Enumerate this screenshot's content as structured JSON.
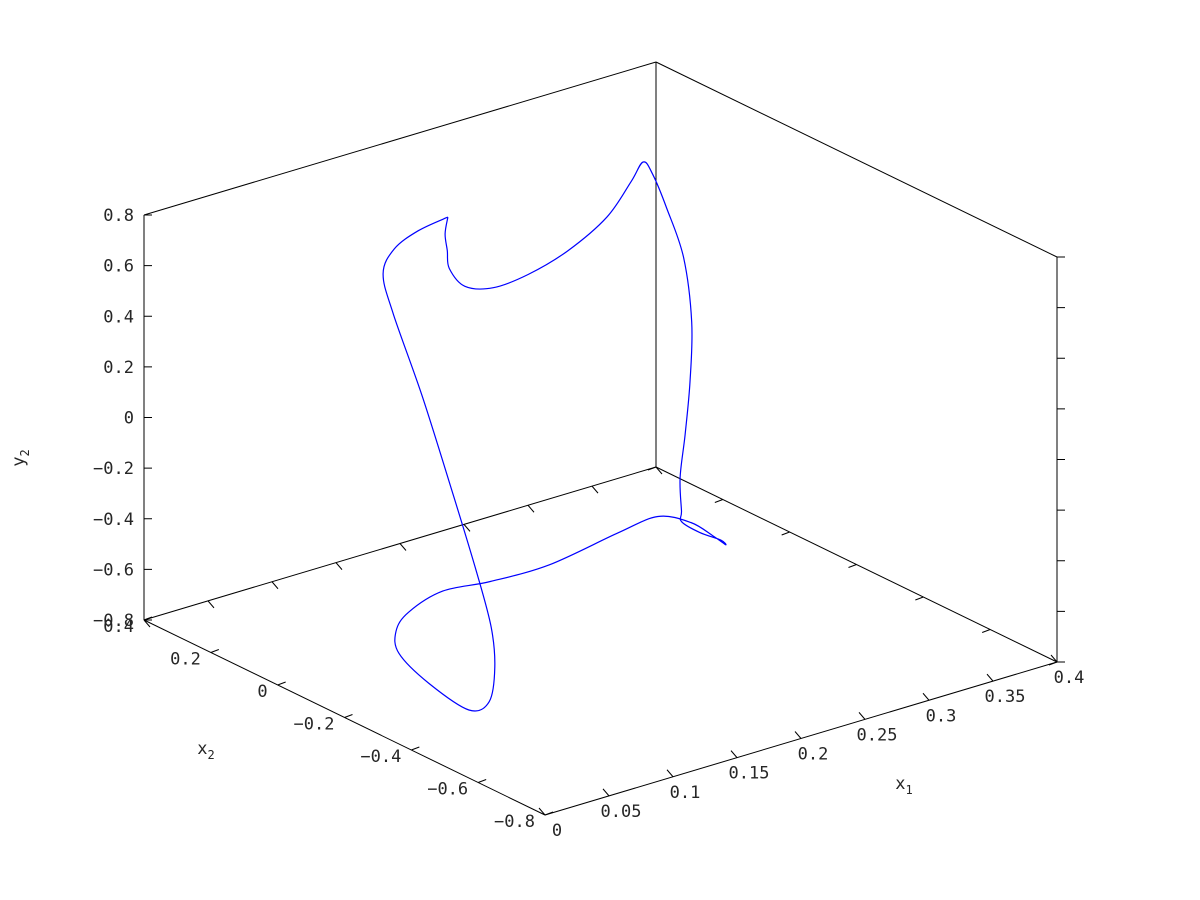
{
  "chart_data": {
    "type": "line3d",
    "title": "",
    "axes": {
      "x1": {
        "label": "x",
        "label_sub": "1",
        "range": [
          0,
          0.4
        ],
        "ticks": [
          0,
          0.05,
          0.1,
          0.15,
          0.2,
          0.25,
          0.3,
          0.35,
          0.4
        ],
        "tick_labels": [
          "0",
          "0.05",
          "0.1",
          "0.15",
          "0.2",
          "0.25",
          "0.3",
          "0.35",
          "0.4"
        ]
      },
      "x2": {
        "label": "x",
        "label_sub": "2",
        "range": [
          -0.8,
          0.4
        ],
        "ticks": [
          -0.8,
          -0.6,
          -0.4,
          -0.2,
          0,
          0.2,
          0.4
        ],
        "tick_labels": [
          "−0.8",
          "−0.6",
          "−0.4",
          "−0.2",
          "0",
          "0.2",
          "0.4"
        ]
      },
      "y2": {
        "label": "y",
        "label_sub": "2",
        "range": [
          -0.8,
          0.8
        ],
        "ticks": [
          -0.8,
          -0.6,
          -0.4,
          -0.2,
          0,
          0.2,
          0.4,
          0.6,
          0.8
        ],
        "tick_labels": [
          "−0.8",
          "−0.6",
          "−0.4",
          "−0.2",
          "0",
          "0.2",
          "0.4",
          "0.6",
          "0.8"
        ]
      }
    },
    "grid": false,
    "series": [
      {
        "color": "#0000ff",
        "points": [
          [
            0.145,
            0.046,
            0.8
          ],
          [
            0.136,
            0.1,
            0.725
          ],
          [
            0.125,
            0.13,
            0.65
          ],
          [
            0.115,
            0.125,
            0.57
          ],
          [
            0.11,
            0.075,
            0.45
          ],
          [
            0.1,
            -0.05,
            0.22
          ],
          [
            0.085,
            -0.2,
            -0.05
          ],
          [
            0.072,
            -0.32,
            -0.26
          ],
          [
            0.065,
            -0.39,
            -0.42
          ],
          [
            0.06,
            -0.42,
            -0.55
          ],
          [
            0.053,
            -0.43,
            -0.67
          ],
          [
            0.045,
            -0.4,
            -0.71
          ],
          [
            0.032,
            -0.33,
            -0.63
          ],
          [
            0.027,
            -0.26,
            -0.55
          ],
          [
            0.035,
            -0.22,
            -0.5
          ],
          [
            0.05,
            -0.2,
            -0.46
          ],
          [
            0.065,
            -0.245,
            -0.37
          ],
          [
            0.08,
            -0.33,
            -0.3
          ],
          [
            0.1,
            -0.43,
            -0.2
          ],
          [
            0.12,
            -0.56,
            -0.02
          ],
          [
            0.13,
            -0.64,
            0.08
          ],
          [
            0.14,
            -0.7,
            0.08
          ],
          [
            0.155,
            -0.71,
            0.01
          ],
          [
            0.175,
            -0.67,
            -0.08
          ],
          [
            0.2,
            -0.56,
            -0.17
          ],
          [
            0.22,
            -0.42,
            -0.26
          ],
          [
            0.232,
            -0.32,
            -0.3
          ],
          [
            0.245,
            -0.27,
            -0.31
          ],
          [
            0.27,
            -0.17,
            -0.28
          ],
          [
            0.3,
            -0.07,
            -0.22
          ],
          [
            0.33,
            0.03,
            -0.12
          ],
          [
            0.36,
            0.14,
            0.0
          ],
          [
            0.385,
            0.26,
            0.14
          ],
          [
            0.398,
            0.36,
            0.25
          ],
          [
            0.4,
            0.41,
            0.35
          ],
          [
            0.39,
            0.4,
            0.42
          ],
          [
            0.365,
            0.34,
            0.42
          ],
          [
            0.325,
            0.26,
            0.39
          ],
          [
            0.28,
            0.205,
            0.36
          ],
          [
            0.24,
            0.17,
            0.35
          ],
          [
            0.205,
            0.14,
            0.37
          ],
          [
            0.175,
            0.11,
            0.44
          ],
          [
            0.155,
            0.08,
            0.56
          ],
          [
            0.149,
            0.063,
            0.65
          ],
          [
            0.147,
            0.062,
            0.72
          ],
          [
            0.145,
            0.046,
            0.8
          ]
        ]
      }
    ]
  }
}
